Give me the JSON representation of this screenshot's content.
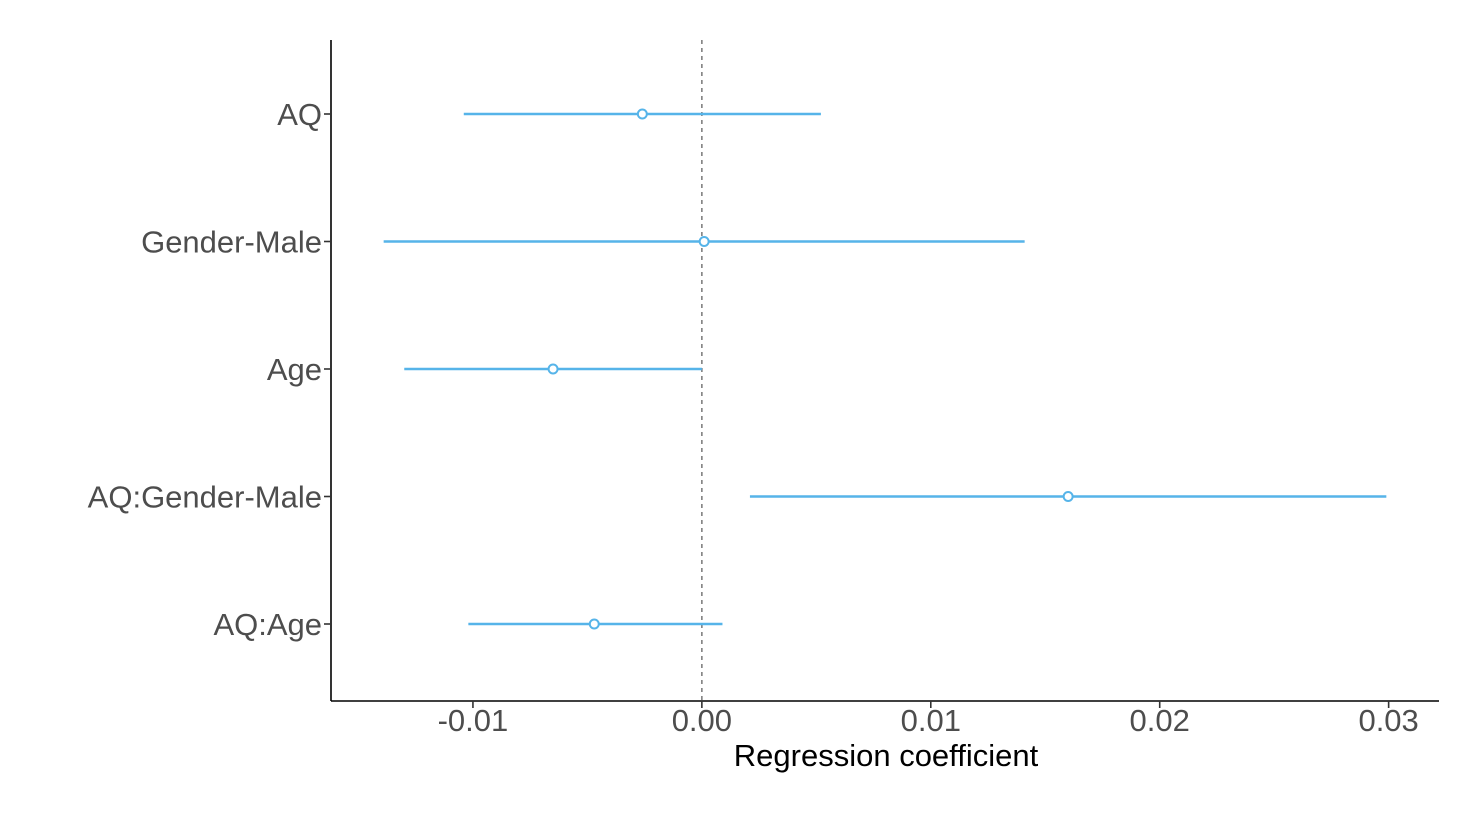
{
  "chart_data": {
    "type": "forest",
    "title": "",
    "xlabel": "Regression coefficient",
    "ylabel": "",
    "xlim": [
      -0.0162,
      0.0322
    ],
    "x_ticks": [
      -0.01,
      0.0,
      0.01,
      0.02,
      0.03
    ],
    "x_tick_labels": [
      "-0.01",
      "0.00",
      "0.01",
      "0.02",
      "0.03"
    ],
    "reference_line": 0.0,
    "grid": false,
    "legend": "none",
    "series_color": "#56B4E9",
    "reference_line_color": "#808080",
    "terms": [
      {
        "label": "AQ",
        "estimate": -0.0026,
        "ci_low": -0.0104,
        "ci_high": 0.0052
      },
      {
        "label": "Gender-Male",
        "estimate": 0.0001,
        "ci_low": -0.0139,
        "ci_high": 0.0141
      },
      {
        "label": "Age",
        "estimate": -0.0065,
        "ci_low": -0.013,
        "ci_high": 0.0
      },
      {
        "label": "AQ:Gender-Male",
        "estimate": 0.016,
        "ci_low": 0.0021,
        "ci_high": 0.0299
      },
      {
        "label": "AQ:Age",
        "estimate": -0.0047,
        "ci_low": -0.0102,
        "ci_high": 0.0009
      }
    ]
  }
}
